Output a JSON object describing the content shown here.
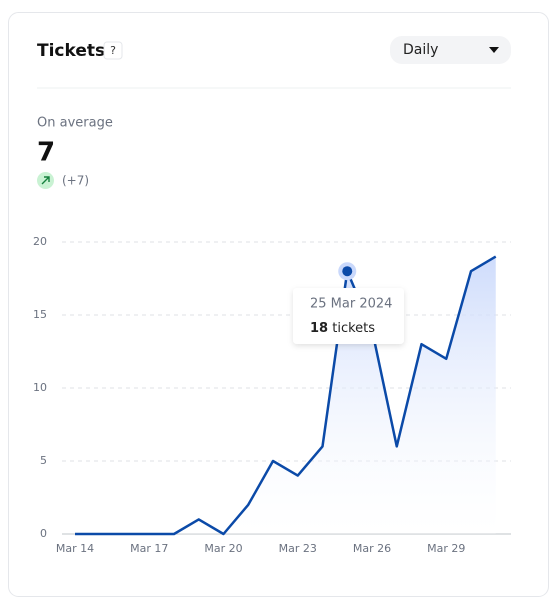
{
  "widget": {
    "title": "Tickets",
    "help": "?",
    "period": "Daily",
    "summary_label": "On average",
    "summary_value": 7,
    "change": "(+7)"
  },
  "chart_data": {
    "type": "line",
    "categories": [
      "Mar 14",
      null,
      null,
      "Mar 17",
      null,
      null,
      "Mar 20",
      null,
      null,
      "Mar 23",
      null,
      null,
      "Mar 26",
      null,
      null,
      "Mar 29",
      null,
      null
    ],
    "values": [
      0,
      0,
      0,
      0,
      0,
      1,
      0,
      2,
      5,
      4,
      6,
      18,
      14,
      6,
      13,
      12,
      18,
      19
    ],
    "color": "#0b4aa8",
    "ylim": [
      0,
      20
    ],
    "yticks": [
      0,
      5,
      10,
      15,
      20
    ],
    "grid": true,
    "tooltip": {
      "index": 11,
      "date": "25 Mar 2024",
      "value": 18,
      "unit": "tickets"
    }
  }
}
